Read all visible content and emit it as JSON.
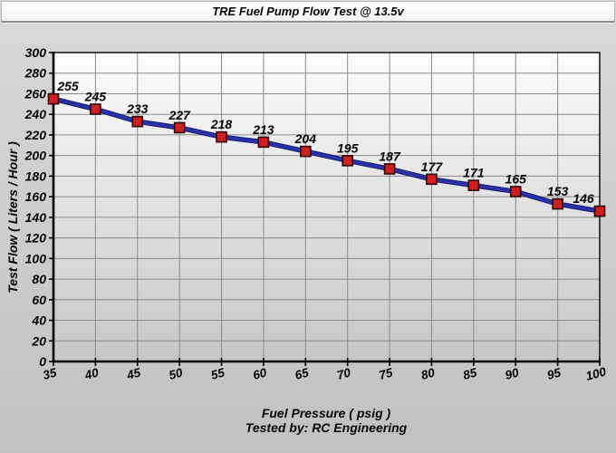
{
  "window": {
    "title": "TRE Fuel Pump Flow Test @ 13.5v"
  },
  "chart_data": {
    "type": "line",
    "title": "TRE Fuel Pump Flow Test @ 13.5v",
    "xlabel": "Fuel Pressure ( psig )",
    "ylabel": "Test Flow ( Liters / Hour )",
    "footnote": "Tested by: RC Engineering",
    "x": [
      35,
      40,
      45,
      50,
      55,
      60,
      65,
      70,
      75,
      80,
      85,
      90,
      95,
      100
    ],
    "values": [
      255,
      245,
      233,
      227,
      218,
      213,
      204,
      195,
      187,
      177,
      171,
      165,
      153,
      146
    ],
    "xlim": [
      35,
      100
    ],
    "ylim": [
      0,
      300
    ],
    "x_ticks": [
      35,
      40,
      45,
      50,
      55,
      60,
      65,
      70,
      75,
      80,
      85,
      90,
      95,
      100
    ],
    "y_ticks": [
      0,
      20,
      40,
      60,
      80,
      100,
      120,
      140,
      160,
      180,
      200,
      220,
      240,
      260,
      280,
      300
    ],
    "grid": true,
    "legend": false,
    "data_labels": true,
    "colors": {
      "line": "#2832ab",
      "line_edge": "#181d6e",
      "marker_fill": "#cf1f1f",
      "marker_border": "#320606",
      "grid": "#8a8a8a",
      "axis": "#000000",
      "plot_top": "#fcfcfc",
      "plot_bottom": "#c6c6c6",
      "background": "#cccccc"
    }
  }
}
